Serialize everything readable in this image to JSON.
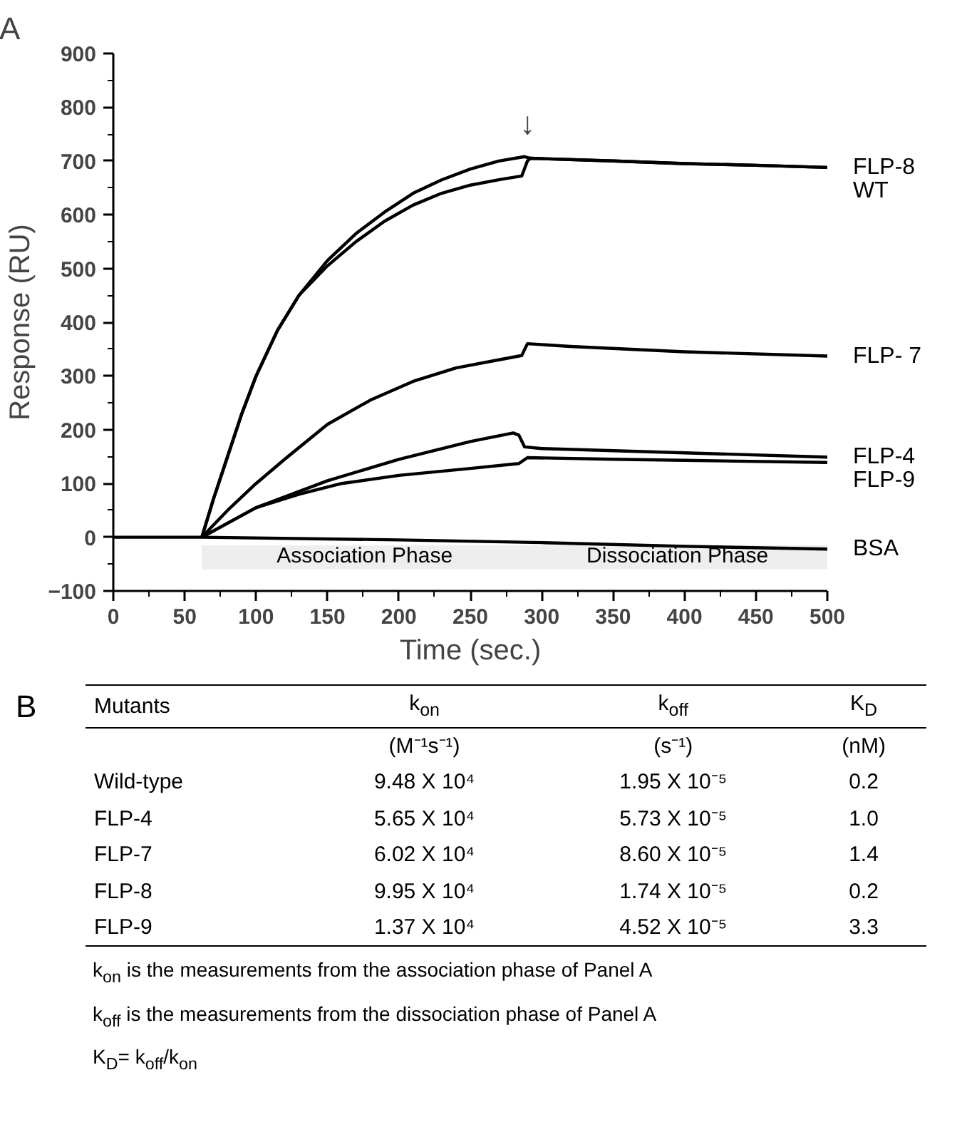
{
  "chart_data": [
    {
      "type": "line",
      "title": "A",
      "xlabel": "Time (sec.)",
      "ylabel": "Response (RU)",
      "xlim": [
        0,
        500
      ],
      "ylim": [
        -100,
        900
      ],
      "xticks": [
        0,
        50,
        100,
        150,
        200,
        250,
        300,
        350,
        400,
        450,
        500
      ],
      "yticks": [
        -100,
        0,
        100,
        200,
        300,
        400,
        500,
        600,
        700,
        800,
        900
      ],
      "grid": false,
      "legend": false,
      "marker": "none",
      "line_style": "solid",
      "series": [
        {
          "name": "FLP-8",
          "color": "#000000",
          "x": [
            62,
            70,
            80,
            90,
            100,
            115,
            130,
            150,
            170,
            190,
            210,
            230,
            250,
            270,
            288,
            292,
            350,
            400,
            450,
            500
          ],
          "values": [
            0,
            70,
            150,
            230,
            300,
            385,
            450,
            515,
            565,
            605,
            640,
            665,
            685,
            700,
            708,
            705,
            700,
            695,
            692,
            688
          ]
        },
        {
          "name": "WT",
          "color": "#000000",
          "x": [
            62,
            70,
            80,
            90,
            100,
            115,
            130,
            150,
            170,
            190,
            210,
            230,
            250,
            270,
            286,
            290,
            292,
            350,
            400,
            450,
            500
          ],
          "values": [
            0,
            70,
            150,
            230,
            300,
            385,
            450,
            505,
            550,
            588,
            618,
            640,
            655,
            665,
            672,
            700,
            705,
            700,
            695,
            692,
            688
          ]
        },
        {
          "name": "FLP- 7",
          "color": "#000000",
          "x": [
            62,
            80,
            100,
            120,
            150,
            180,
            210,
            240,
            270,
            286,
            290,
            320,
            400,
            500
          ],
          "values": [
            0,
            50,
            100,
            145,
            210,
            255,
            290,
            315,
            330,
            338,
            360,
            355,
            345,
            337
          ]
        },
        {
          "name": "FLP-4",
          "color": "#000000",
          "x": [
            62,
            100,
            150,
            200,
            250,
            280,
            284,
            288,
            300,
            400,
            500
          ],
          "values": [
            0,
            55,
            105,
            145,
            178,
            194,
            190,
            168,
            165,
            157,
            149
          ]
        },
        {
          "name": "FLP-9",
          "color": "#000000",
          "x": [
            62,
            100,
            130,
            160,
            200,
            250,
            284,
            290,
            350,
            400,
            500
          ],
          "values": [
            0,
            55,
            80,
            100,
            115,
            128,
            137,
            148,
            145,
            143,
            139
          ]
        },
        {
          "name": "BSA",
          "color": "#000000",
          "x": [
            0,
            62,
            200,
            300,
            400,
            500
          ],
          "values": [
            0,
            0,
            -5,
            -10,
            -17,
            -22
          ]
        }
      ],
      "bands": [
        {
          "axis": "x",
          "from": 62,
          "to": 290,
          "label": "Association Phase",
          "color": "#eeeeee"
        },
        {
          "axis": "x",
          "from": 290,
          "to": 500,
          "label": "Dissociation Phase",
          "color": "#eeeeee"
        }
      ],
      "annotations": [
        {
          "text": "↓",
          "x": 290,
          "y": 700
        }
      ]
    },
    {
      "type": "other",
      "title": "B",
      "annotations": [
        "Mutants",
        "k$_{on}$",
        "k$_{off}$",
        "K$_{D}$",
        "(M⁻¹s⁻¹)",
        "(s⁻¹)",
        "(nM)",
        "Wild-type",
        "9.48 X 10⁴",
        "1.95 X 10⁻⁵",
        "0.2",
        "FLP-4",
        "5.65 X 10⁴",
        "5.73 X 10⁻⁵",
        "1.0",
        "FLP-7",
        "6.02 X 10⁴",
        "8.60 X 10⁻⁵",
        "1.4",
        "FLP-8",
        "9.95 X 10⁴",
        "1.74 X 10⁻⁵",
        "0.2",
        "FLP-9",
        "1.37 X 10⁴",
        "4.52 X 10⁻⁵",
        "3.3",
        "k$_{on}$ is the measurements from the association phase of Panel A",
        "k$_{off}$ is the measurements from the dissociation phase of Panel A",
        "K$_{D}$= k$_{off}$/k$_{on}$"
      ]
    }
  ]
}
